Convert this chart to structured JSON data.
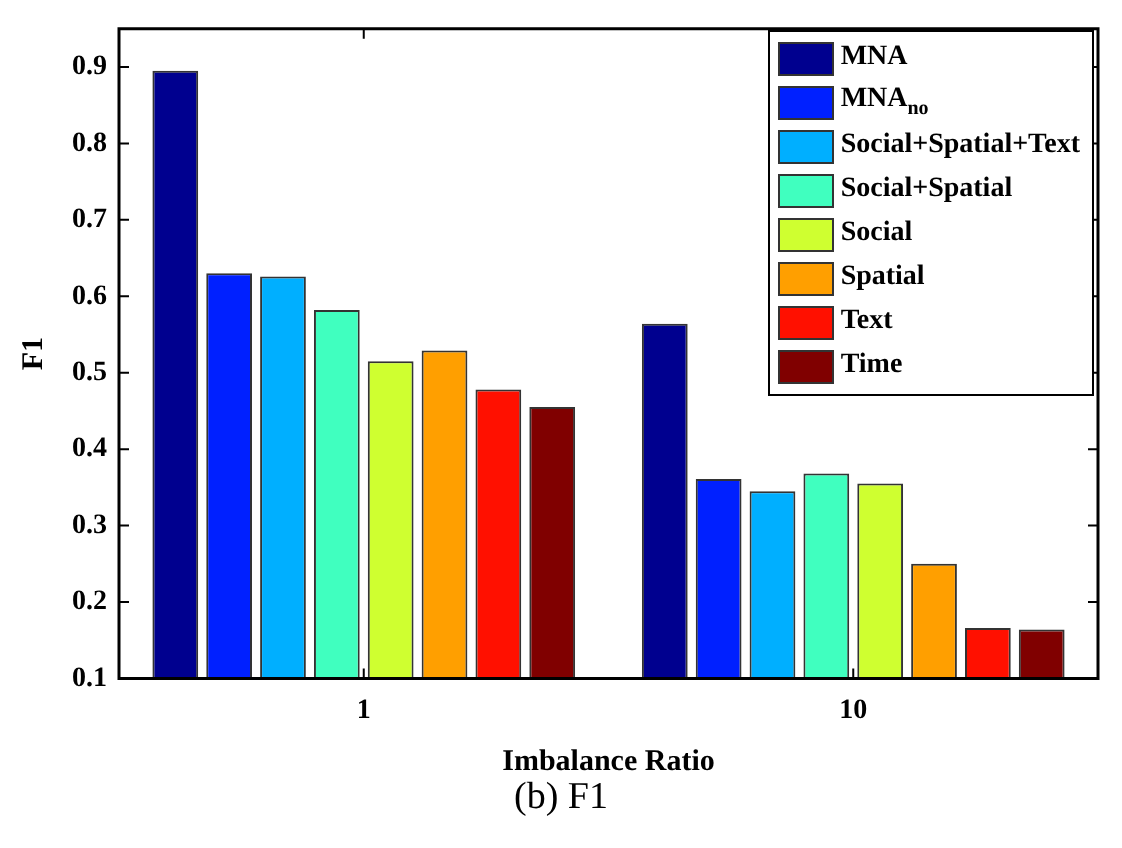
{
  "chart_data": {
    "type": "bar",
    "xlabel": "Imbalance Ratio",
    "ylabel": "F1",
    "categories": [
      "1",
      "10"
    ],
    "series": [
      {
        "name": "MNA",
        "color": "#00008f",
        "values": [
          0.895,
          0.564
        ]
      },
      {
        "name": "MNA$_{no}$",
        "color": "#0020ff",
        "values": [
          0.63,
          0.361
        ]
      },
      {
        "name": "Social+Spatial+Text",
        "color": "#00afff",
        "values": [
          0.626,
          0.345
        ]
      },
      {
        "name": "Social+Spatial",
        "color": "#40ffbf",
        "values": [
          0.582,
          0.368
        ]
      },
      {
        "name": "Social",
        "color": "#cfff30",
        "values": [
          0.515,
          0.355
        ]
      },
      {
        "name": "Spatial",
        "color": "#ff9f00",
        "values": [
          0.529,
          0.25
        ]
      },
      {
        "name": "Text",
        "color": "#ff1000",
        "values": [
          0.478,
          0.166
        ]
      },
      {
        "name": "Time",
        "color": "#800000",
        "values": [
          0.455,
          0.164
        ]
      }
    ],
    "ylim": [
      0.1,
      0.95
    ],
    "yticks": [
      0.1,
      0.2,
      0.3,
      0.4,
      0.5,
      0.6,
      0.7,
      0.8,
      0.9
    ],
    "grid": false,
    "legend": "top right",
    "annotations": [
      "(b) F1"
    ]
  }
}
